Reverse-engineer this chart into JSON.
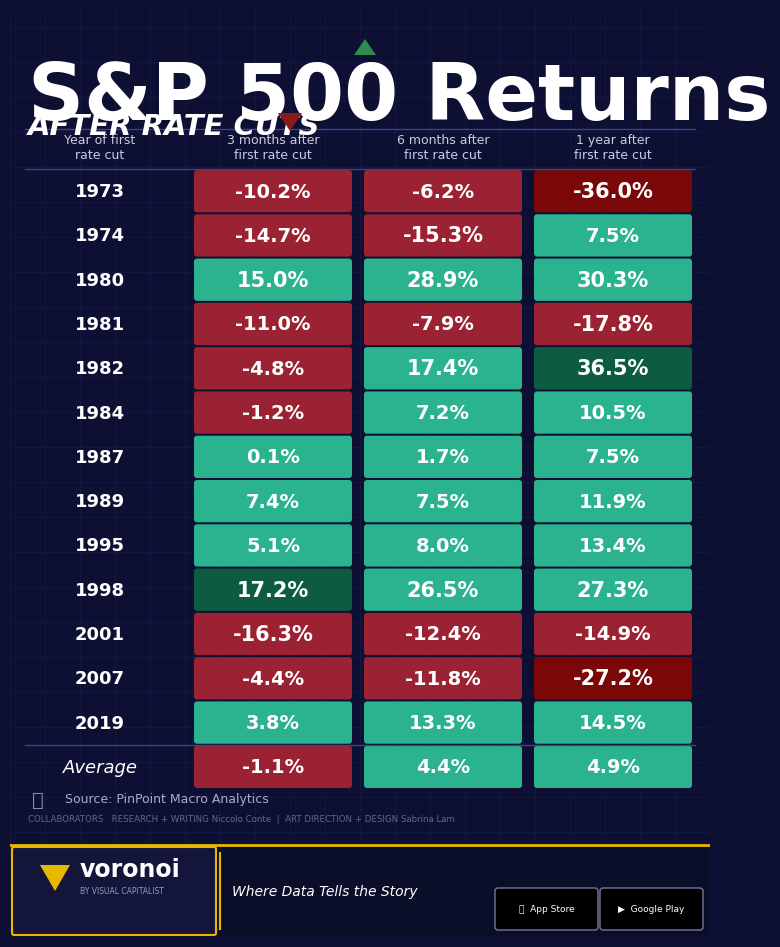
{
  "title_line1": "S&P 500 Returns",
  "title_line2": "AFTER RATE CUTS",
  "col_headers": [
    "Year of first\nrate cut",
    "3 months after\nfirst rate cut",
    "6 months after\nfirst rate cut",
    "1 year after\nfirst rate cut"
  ],
  "rows": [
    {
      "year": "1973",
      "v3": -10.2,
      "v6": -6.2,
      "v12": -36.0
    },
    {
      "year": "1974",
      "v3": -14.7,
      "v6": -15.3,
      "v12": 7.5
    },
    {
      "year": "1980",
      "v3": 15.0,
      "v6": 28.9,
      "v12": 30.3
    },
    {
      "year": "1981",
      "v3": -11.0,
      "v6": -7.9,
      "v12": -17.8
    },
    {
      "year": "1982",
      "v3": -4.8,
      "v6": 17.4,
      "v12": 36.5
    },
    {
      "year": "1984",
      "v3": -1.2,
      "v6": 7.2,
      "v12": 10.5
    },
    {
      "year": "1987",
      "v3": 0.1,
      "v6": 1.7,
      "v12": 7.5
    },
    {
      "year": "1989",
      "v3": 7.4,
      "v6": 7.5,
      "v12": 11.9
    },
    {
      "year": "1995",
      "v3": 5.1,
      "v6": 8.0,
      "v12": 13.4
    },
    {
      "year": "1998",
      "v3": 17.2,
      "v6": 26.5,
      "v12": 27.3
    },
    {
      "year": "2001",
      "v3": -16.3,
      "v6": -12.4,
      "v12": -14.9
    },
    {
      "year": "2007",
      "v3": -4.4,
      "v6": -11.8,
      "v12": -27.2
    },
    {
      "year": "2019",
      "v3": 3.8,
      "v6": 13.3,
      "v12": 14.5
    },
    {
      "year": "Average",
      "v3": -1.1,
      "v6": 4.4,
      "v12": 4.9
    }
  ],
  "bg_color": "#0e1033",
  "grid_color": "#1e2560",
  "green_normal": "#2ab38e",
  "green_dark": "#1a7a5e",
  "red_normal": "#9b2232",
  "red_dark": "#6a0f0f",
  "text_color": "#ffffff",
  "header_color": "#c8cce0",
  "source_text": "Source: PinPoint Macro Analytics",
  "footer_text": "COLLABORATORS   RESEARCH + WRITING Niccolo Conte  |  ART DIRECTION + DESIGN Sabrina Lam",
  "brand_text": "voronoi",
  "brand_sub": "BY VISUAL CAPITALIST",
  "brand_tagline": "Where Data Tells the Story",
  "special_cells": {
    "1973_v12": "dark_red",
    "2007_v12": "dark_red",
    "1982_v12": "dark_green",
    "1998_v3": "dark_green"
  }
}
